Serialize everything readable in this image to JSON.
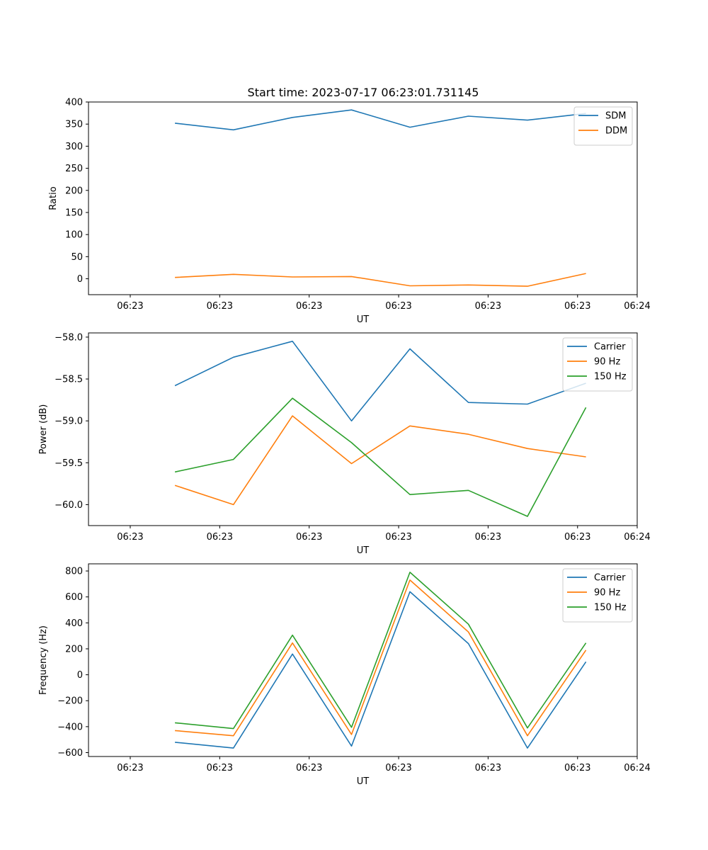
{
  "figure_title": "Start time: 2023-07-17 06:23:01.731145",
  "chart_data": [
    {
      "type": "line",
      "title": "Start time: 2023-07-17 06:23:01.731145",
      "xlabel": "UT",
      "ylabel": "Ratio",
      "xlim": [
        0,
        9.2
      ],
      "x_ticks": [
        0.7,
        2.2,
        3.7,
        5.2,
        6.7,
        8.2,
        9.2
      ],
      "x_tick_labels": [
        "06:23",
        "06:23",
        "06:23",
        "06:23",
        "06:23",
        "06:23",
        "06:24"
      ],
      "ylim": [
        -36,
        400
      ],
      "y_ticks": [
        0,
        50,
        100,
        150,
        200,
        250,
        300,
        350,
        400
      ],
      "y_tick_labels": [
        "0",
        "50",
        "100",
        "150",
        "200",
        "250",
        "300",
        "350",
        "400"
      ],
      "legend_position": "top-right",
      "x": [
        1.45,
        2.43,
        3.42,
        4.41,
        5.39,
        6.37,
        7.36,
        8.34
      ],
      "series": [
        {
          "name": "SDM",
          "color": "#1f77b4",
          "values": [
            352,
            337,
            365,
            382,
            343,
            368,
            359,
            374
          ]
        },
        {
          "name": "DDM",
          "color": "#ff7f0e",
          "values": [
            3,
            10,
            4,
            5,
            -16,
            -14,
            -17,
            12
          ]
        }
      ]
    },
    {
      "type": "line",
      "title": "",
      "xlabel": "UT",
      "ylabel": "Power (dB)",
      "xlim": [
        0,
        9.2
      ],
      "x_ticks": [
        0.7,
        2.2,
        3.7,
        5.2,
        6.7,
        8.2,
        9.2
      ],
      "x_tick_labels": [
        "06:23",
        "06:23",
        "06:23",
        "06:23",
        "06:23",
        "06:23",
        "06:24"
      ],
      "ylim": [
        -60.25,
        -57.95
      ],
      "y_ticks": [
        -60.0,
        -59.5,
        -59.0,
        -58.5,
        -58.0
      ],
      "y_tick_labels": [
        "−60.0",
        "−59.5",
        "−59.0",
        "−58.5",
        "−58.0"
      ],
      "legend_position": "top-right",
      "x": [
        1.45,
        2.43,
        3.42,
        4.41,
        5.39,
        6.37,
        7.36,
        8.34
      ],
      "series": [
        {
          "name": "Carrier",
          "color": "#1f77b4",
          "values": [
            -58.58,
            -58.24,
            -58.05,
            -59.0,
            -58.14,
            -58.78,
            -58.8,
            -58.55
          ]
        },
        {
          "name": "90 Hz",
          "color": "#ff7f0e",
          "values": [
            -59.77,
            -60.0,
            -58.94,
            -59.51,
            -59.06,
            -59.16,
            -59.33,
            -59.43
          ]
        },
        {
          "name": "150 Hz",
          "color": "#2ca02c",
          "values": [
            -59.61,
            -59.46,
            -58.73,
            -59.26,
            -59.88,
            -59.83,
            -60.14,
            -58.84
          ]
        }
      ]
    },
    {
      "type": "line",
      "title": "",
      "xlabel": "UT",
      "ylabel": "Frequency (Hz)",
      "xlim": [
        0,
        9.2
      ],
      "x_ticks": [
        0.7,
        2.2,
        3.7,
        5.2,
        6.7,
        8.2,
        9.2
      ],
      "x_tick_labels": [
        "06:23",
        "06:23",
        "06:23",
        "06:23",
        "06:23",
        "06:23",
        "06:24"
      ],
      "ylim": [
        -630,
        855
      ],
      "y_ticks": [
        -600,
        -400,
        -200,
        0,
        200,
        400,
        600,
        800
      ],
      "y_tick_labels": [
        "−600",
        "−400",
        "−200",
        "0",
        "200",
        "400",
        "600",
        "800"
      ],
      "legend_position": "top-right",
      "x": [
        1.45,
        2.43,
        3.42,
        4.41,
        5.39,
        6.37,
        7.36,
        8.34
      ],
      "series": [
        {
          "name": "Carrier",
          "color": "#1f77b4",
          "values": [
            -520,
            -565,
            160,
            -550,
            640,
            240,
            -565,
            100
          ]
        },
        {
          "name": "90 Hz",
          "color": "#ff7f0e",
          "values": [
            -430,
            -470,
            245,
            -460,
            730,
            330,
            -470,
            190
          ]
        },
        {
          "name": "150 Hz",
          "color": "#2ca02c",
          "values": [
            -370,
            -415,
            305,
            -405,
            790,
            390,
            -410,
            245
          ]
        }
      ]
    }
  ]
}
